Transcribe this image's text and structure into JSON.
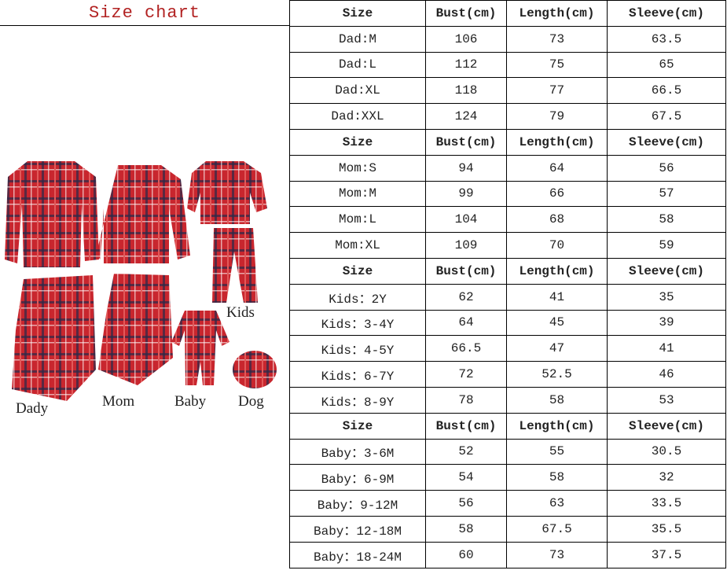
{
  "title": "Size chart",
  "labels": {
    "kids": "Kids",
    "dady": "Dady",
    "mom": "Mom",
    "baby": "Baby",
    "dog": "Dog"
  },
  "colors": {
    "title": "#b22222",
    "plaid": "#c8262e"
  },
  "header": [
    "Size",
    "Bust(cm)",
    "Length(cm)",
    "Sleeve(cm)"
  ],
  "groups": [
    {
      "rows": [
        [
          "Dad:M",
          "106",
          "73",
          "63.5"
        ],
        [
          "Dad:L",
          "112",
          "75",
          "65"
        ],
        [
          "Dad:XL",
          "118",
          "77",
          "66.5"
        ],
        [
          "Dad:XXL",
          "124",
          "79",
          "67.5"
        ]
      ]
    },
    {
      "rows": [
        [
          "Mom:S",
          "94",
          "64",
          "56"
        ],
        [
          "Mom:M",
          "99",
          "66",
          "57"
        ],
        [
          "Mom:L",
          "104",
          "68",
          "58"
        ],
        [
          "Mom:XL",
          "109",
          "70",
          "59"
        ]
      ]
    },
    {
      "rows": [
        [
          "Kids：2Y",
          "62",
          "41",
          "35"
        ],
        [
          "Kids：3-4Y",
          "64",
          "45",
          "39"
        ],
        [
          "Kids：4-5Y",
          "66.5",
          "47",
          "41"
        ],
        [
          "Kids：6-7Y",
          "72",
          "52.5",
          "46"
        ],
        [
          "Kids：8-9Y",
          "78",
          "58",
          "53"
        ]
      ]
    },
    {
      "rows": [
        [
          "Baby：3-6M",
          "52",
          "55",
          "30.5"
        ],
        [
          "Baby：6-9M",
          "54",
          "58",
          "32"
        ],
        [
          "Baby：9-12M",
          "56",
          "63",
          "33.5"
        ],
        [
          "Baby：12-18M",
          "58",
          "67.5",
          "35.5"
        ],
        [
          "Baby：18-24M",
          "60",
          "73",
          "37.5"
        ]
      ]
    }
  ]
}
